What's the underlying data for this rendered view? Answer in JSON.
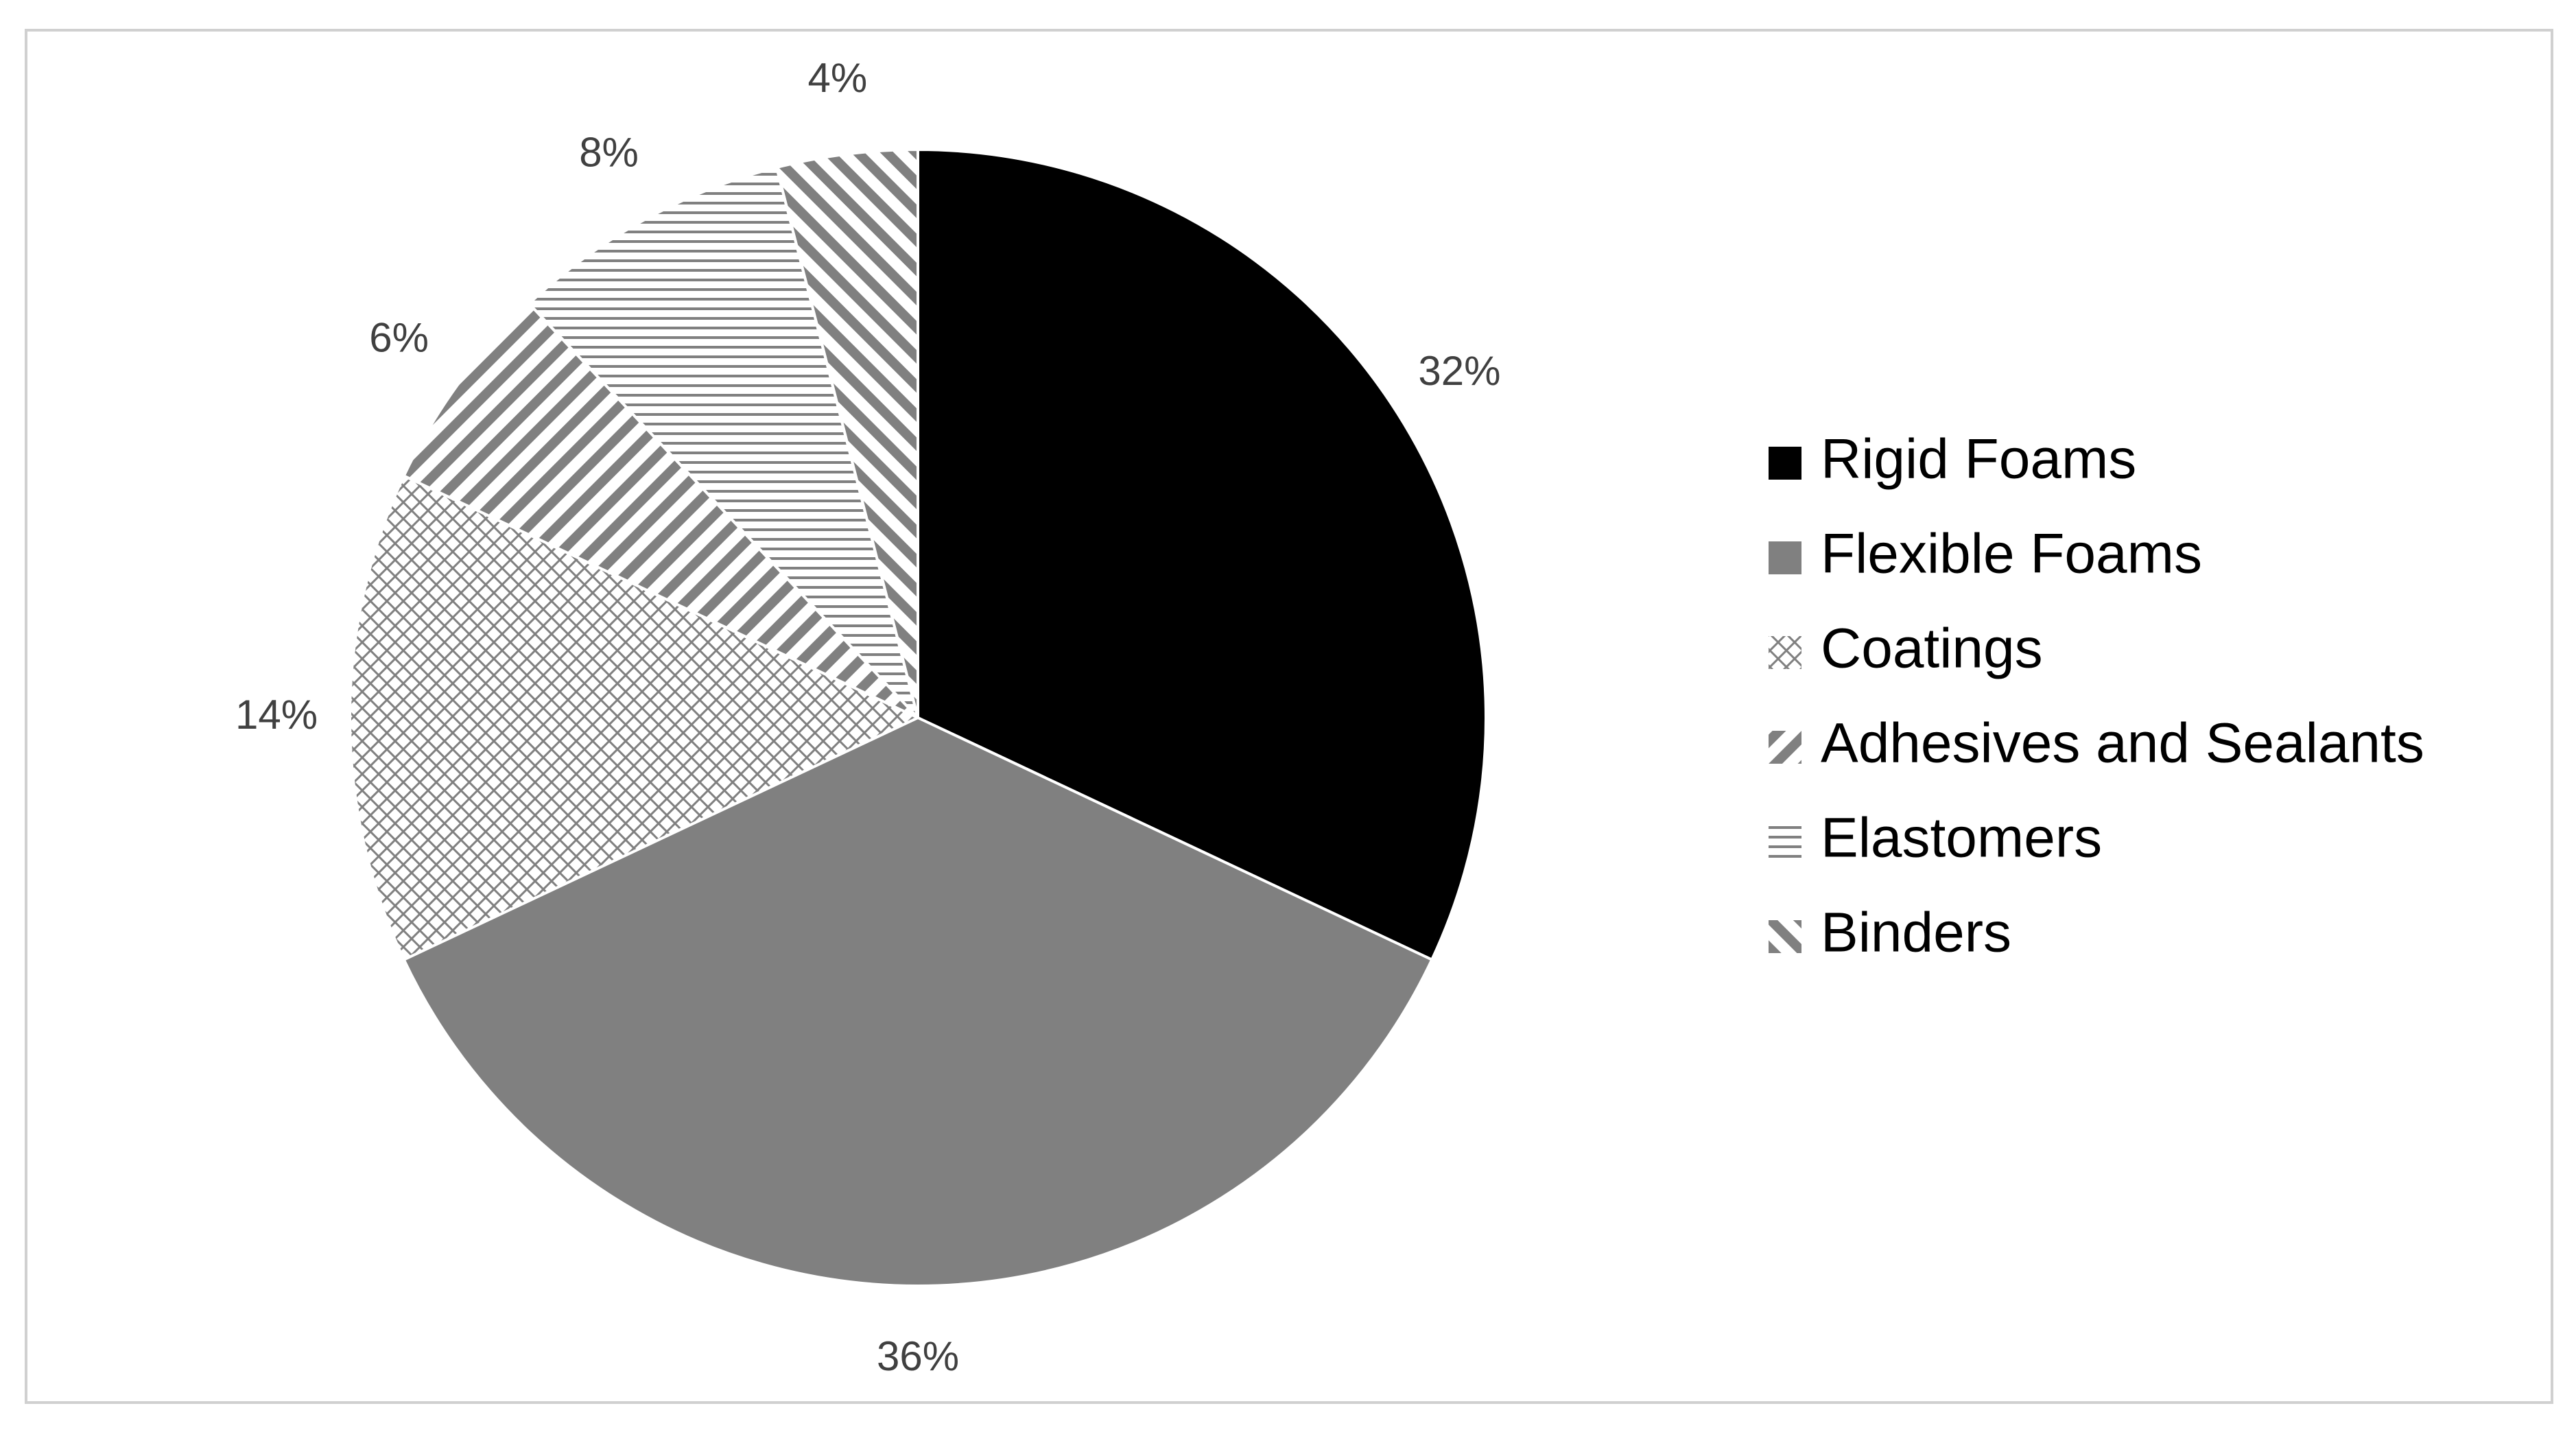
{
  "chart_data": {
    "type": "pie",
    "title": "",
    "start": "12 o'clock",
    "direction": "clockwise",
    "legend_position": "right",
    "slices": [
      {
        "label": "Rigid Foams",
        "value": 32,
        "display": "32%",
        "fill": "solid",
        "color": "#000000"
      },
      {
        "label": "Flexible Foams",
        "value": 36,
        "display": "36%",
        "fill": "solid",
        "color": "#808080"
      },
      {
        "label": "Coatings",
        "value": 14,
        "display": "14%",
        "fill": "crosshatch",
        "color": "#808080"
      },
      {
        "label": "Adhesives and Sealants",
        "value": 6,
        "display": "6%",
        "fill": "wide-diagonal-up",
        "color": "#808080"
      },
      {
        "label": "Elastomers",
        "value": 8,
        "display": "8%",
        "fill": "horizontal-lines",
        "color": "#808080"
      },
      {
        "label": "Binders",
        "value": 4,
        "display": "4%",
        "fill": "wide-diagonal-down",
        "color": "#808080"
      }
    ]
  }
}
